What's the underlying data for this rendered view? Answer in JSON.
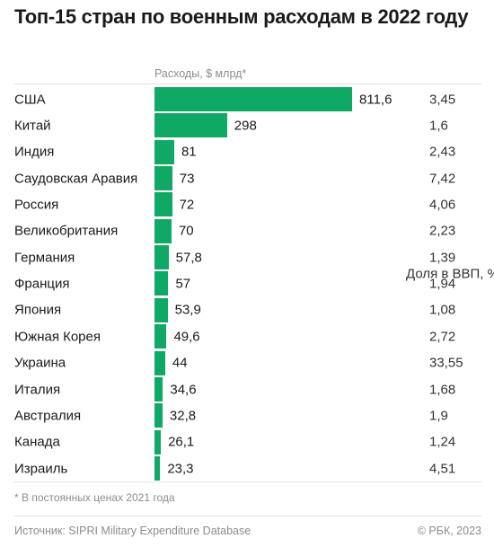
{
  "chart_data": {
    "type": "bar",
    "orientation": "horizontal",
    "title": "Топ-15 стран по военным расходам в 2022 году",
    "value_header": "Расходы, $ млрд*",
    "gdp_header": "Доля в ВВП, %",
    "categories": [
      "США",
      "Китай",
      "Индия",
      "Саудовская Аравия",
      "Россия",
      "Великобритания",
      "Германия",
      "Франция",
      "Япония",
      "Южная Корея",
      "Украина",
      "Италия",
      "Австралия",
      "Канада",
      "Израиль"
    ],
    "values": [
      811.6,
      298,
      81,
      73,
      72,
      70,
      57.8,
      57,
      53.9,
      49.6,
      44,
      34.6,
      32.8,
      26.1,
      23.3
    ],
    "value_labels": [
      "811,6",
      "298",
      "81",
      "73",
      "72",
      "70",
      "57,8",
      "57",
      "53,9",
      "49,6",
      "44",
      "34,6",
      "32,8",
      "26,1",
      "23,3"
    ],
    "gdp_share_labels": [
      "3,45",
      "1,6",
      "2,43",
      "7,42",
      "4,06",
      "2,23",
      "1,39",
      "1,94",
      "1,08",
      "2,72",
      "33,55",
      "1,68",
      "1,9",
      "1,24",
      "4,51"
    ],
    "xlim": [
      0,
      811.6
    ],
    "bar_color": "#0fa965",
    "footnote": "* В постоянных ценах 2021 года",
    "source": "Источник: SIPRI Military Expenditure Database",
    "credit": "© РБК, 2023"
  }
}
